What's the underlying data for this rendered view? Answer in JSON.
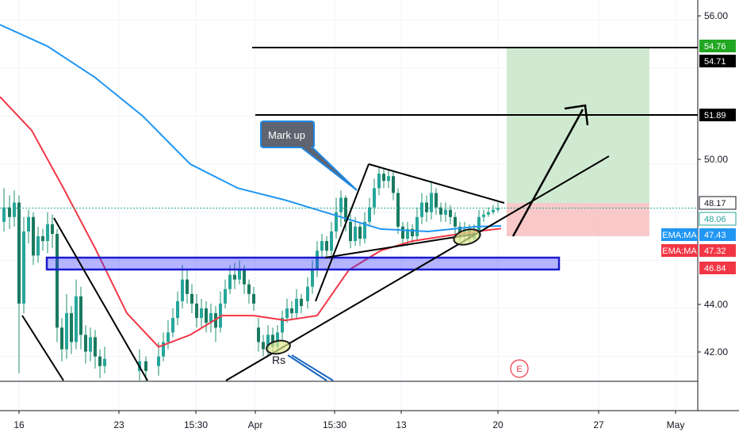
{
  "chart_data": {
    "type": "candlestick",
    "title": "",
    "xlabel": "",
    "ylabel": "",
    "ylim": [
      40.7,
      56.6
    ],
    "grid": true,
    "x_ticks": [
      "16",
      "23",
      "15:30",
      "Apr",
      "15:30",
      "13",
      "20",
      "27",
      "May"
    ],
    "y_ticks": [
      "56.00",
      "50.00",
      "44.00",
      "42.00"
    ],
    "price_badges": [
      {
        "value": "54.76",
        "color": "#22a722"
      },
      {
        "value": "54.71",
        "color": "#000000"
      },
      {
        "value": "51.89",
        "color": "#000000"
      },
      {
        "value": "48.17",
        "color": "#ffffff"
      },
      {
        "value": "48.06",
        "color": "#ffffff"
      },
      {
        "value": "47.43",
        "color": "#2196f3"
      },
      {
        "value": "47.32",
        "color": "#f23645"
      },
      {
        "value": "46.84",
        "color": "#f23645"
      }
    ],
    "series": [
      {
        "name": "EMA:MA",
        "color": "#2196f3",
        "values": [
          [
            0,
            55.8
          ],
          [
            60,
            54.9
          ],
          [
            120,
            53.6
          ],
          [
            180,
            52.0
          ],
          [
            240,
            50.0
          ],
          [
            300,
            49.0
          ],
          [
            360,
            48.5
          ],
          [
            420,
            47.9
          ],
          [
            480,
            47.3
          ],
          [
            540,
            47.2
          ],
          [
            600,
            47.4
          ],
          [
            632,
            47.43
          ]
        ]
      },
      {
        "name": "EMA:MA",
        "color": "#f23645",
        "values": [
          [
            0,
            52.8
          ],
          [
            40,
            51.4
          ],
          [
            80,
            49.0
          ],
          [
            120,
            46.5
          ],
          [
            160,
            43.8
          ],
          [
            200,
            42.4
          ],
          [
            240,
            42.9
          ],
          [
            280,
            43.7
          ],
          [
            320,
            43.7
          ],
          [
            360,
            43.5
          ],
          [
            400,
            43.7
          ],
          [
            440,
            45.6
          ],
          [
            480,
            46.4
          ],
          [
            520,
            46.8
          ],
          [
            560,
            47.0
          ],
          [
            600,
            47.2
          ],
          [
            632,
            47.32
          ]
        ]
      }
    ],
    "candles": [
      [
        5,
        47.6,
        48.2,
        49.0,
        47.2
      ],
      [
        12,
        48.2,
        47.8,
        48.7,
        47.3
      ],
      [
        18,
        47.8,
        48.4,
        48.9,
        47.4
      ],
      [
        24,
        48.4,
        44.2,
        48.7,
        41.3
      ],
      [
        30,
        44.2,
        47.2,
        47.8,
        43.8
      ],
      [
        36,
        47.2,
        47.8,
        48.1,
        46.7
      ],
      [
        42,
        47.8,
        46.2,
        48.0,
        45.8
      ],
      [
        48,
        46.2,
        47.0,
        47.4,
        45.9
      ],
      [
        54,
        47.0,
        46.8,
        47.3,
        46.4
      ],
      [
        60,
        46.8,
        47.5,
        48.0,
        46.3
      ],
      [
        66,
        47.5,
        47.1,
        47.9,
        46.5
      ],
      [
        72,
        47.1,
        43.2,
        47.3,
        42.6
      ],
      [
        78,
        43.2,
        42.3,
        43.6,
        41.8
      ],
      [
        84,
        42.3,
        43.8,
        44.6,
        41.9
      ],
      [
        90,
        43.8,
        42.6,
        44.1,
        42.1
      ],
      [
        96,
        42.6,
        44.5,
        45.2,
        42.3
      ],
      [
        102,
        44.5,
        42.9,
        44.9,
        42.3
      ],
      [
        108,
        42.9,
        42.2,
        43.3,
        41.7
      ],
      [
        114,
        42.2,
        42.8,
        43.2,
        41.8
      ],
      [
        120,
        42.8,
        42.0,
        43.1,
        41.5
      ],
      [
        126,
        42.0,
        41.6,
        42.3,
        41.1
      ],
      [
        132,
        41.6,
        41.9,
        42.4,
        41.3
      ],
      [
        176,
        41.4,
        41.8,
        42.3,
        41.0
      ],
      [
        184,
        41.8,
        41.4,
        42.0,
        41.0
      ],
      [
        200,
        41.6,
        42.0,
        42.6,
        41.2
      ],
      [
        206,
        42.0,
        42.6,
        43.0,
        41.8
      ],
      [
        212,
        42.6,
        43.0,
        43.5,
        42.3
      ],
      [
        218,
        43.0,
        43.6,
        44.0,
        42.8
      ],
      [
        224,
        43.6,
        44.3,
        44.7,
        43.3
      ],
      [
        230,
        44.3,
        45.2,
        45.8,
        44.0
      ],
      [
        236,
        45.2,
        44.6,
        45.6,
        44.2
      ],
      [
        242,
        44.6,
        44.2,
        45.0,
        43.8
      ],
      [
        248,
        44.2,
        43.6,
        44.6,
        43.2
      ],
      [
        254,
        43.6,
        44.0,
        44.4,
        43.2
      ],
      [
        260,
        44.0,
        43.4,
        44.3,
        43.0
      ],
      [
        266,
        43.4,
        43.8,
        44.2,
        43.0
      ],
      [
        272,
        43.8,
        43.2,
        44.1,
        42.6
      ],
      [
        278,
        43.2,
        44.2,
        44.7,
        43.0
      ],
      [
        284,
        44.2,
        44.8,
        45.2,
        44.0
      ],
      [
        290,
        44.8,
        45.4,
        45.8,
        44.6
      ],
      [
        296,
        45.4,
        45.2,
        45.9,
        44.8
      ],
      [
        302,
        45.2,
        45.6,
        46.0,
        45.0
      ],
      [
        308,
        45.6,
        45.0,
        45.8,
        44.6
      ],
      [
        314,
        45.0,
        44.6,
        45.2,
        44.2
      ],
      [
        320,
        44.6,
        44.2,
        44.9,
        43.9
      ],
      [
        326,
        43.2,
        42.6,
        43.6,
        42.2
      ],
      [
        332,
        42.6,
        42.3,
        42.9,
        42.0
      ],
      [
        338,
        42.3,
        42.9,
        43.3,
        42.0
      ],
      [
        344,
        42.9,
        42.4,
        43.2,
        42.1
      ],
      [
        350,
        42.4,
        43.0,
        43.3,
        42.1
      ],
      [
        356,
        43.0,
        43.6,
        43.9,
        42.7
      ],
      [
        362,
        43.6,
        44.0,
        44.4,
        43.4
      ],
      [
        368,
        44.0,
        43.8,
        44.3,
        43.5
      ],
      [
        374,
        43.8,
        44.4,
        44.8,
        43.6
      ],
      [
        380,
        44.4,
        44.1,
        44.6,
        43.8
      ],
      [
        388,
        44.3,
        44.9,
        45.3,
        44.0
      ],
      [
        394,
        44.9,
        45.6,
        46.0,
        44.6
      ],
      [
        400,
        45.6,
        46.4,
        46.8,
        45.3
      ],
      [
        406,
        46.4,
        46.8,
        47.1,
        46.1
      ],
      [
        412,
        46.8,
        46.4,
        47.0,
        46.1
      ],
      [
        418,
        46.4,
        47.2,
        47.6,
        46.2
      ],
      [
        424,
        47.2,
        48.0,
        48.6,
        46.9
      ],
      [
        430,
        48.0,
        48.6,
        48.9,
        47.4
      ],
      [
        436,
        48.6,
        47.6,
        48.7,
        47.2
      ],
      [
        442,
        47.6,
        46.8,
        47.9,
        46.5
      ],
      [
        448,
        46.8,
        47.4,
        47.8,
        46.6
      ],
      [
        454,
        47.4,
        46.9,
        47.6,
        46.6
      ],
      [
        460,
        46.9,
        47.6,
        48.0,
        46.7
      ],
      [
        466,
        47.6,
        48.2,
        48.6,
        47.4
      ],
      [
        472,
        48.2,
        49.0,
        49.4,
        47.9
      ],
      [
        478,
        49.0,
        49.6,
        49.9,
        48.7
      ],
      [
        484,
        49.6,
        49.3,
        49.8,
        49.0
      ],
      [
        490,
        49.3,
        49.5,
        49.8,
        49.0
      ],
      [
        496,
        49.5,
        48.8,
        49.7,
        48.5
      ],
      [
        502,
        48.8,
        47.4,
        49.0,
        47.1
      ],
      [
        508,
        47.4,
        46.9,
        47.6,
        46.6
      ],
      [
        514,
        46.9,
        47.3,
        47.6,
        46.6
      ],
      [
        520,
        47.3,
        47.0,
        47.5,
        46.7
      ],
      [
        526,
        47.0,
        47.8,
        48.2,
        46.8
      ],
      [
        532,
        47.8,
        48.4,
        48.8,
        47.5
      ],
      [
        538,
        48.4,
        48.0,
        48.7,
        47.6
      ],
      [
        544,
        48.0,
        48.8,
        49.3,
        47.7
      ],
      [
        550,
        48.8,
        48.2,
        49.0,
        47.9
      ],
      [
        556,
        48.2,
        47.9,
        48.4,
        47.6
      ],
      [
        562,
        47.9,
        48.1,
        48.4,
        47.6
      ],
      [
        568,
        48.1,
        47.8,
        48.3,
        47.5
      ],
      [
        574,
        47.8,
        47.4,
        48.0,
        46.9
      ],
      [
        580,
        47.4,
        47.0,
        47.6,
        46.8
      ],
      [
        586,
        47.0,
        47.3,
        47.6,
        46.8
      ],
      [
        592,
        47.3,
        46.9,
        47.5,
        46.7
      ],
      [
        598,
        46.9,
        47.2,
        47.5,
        46.8
      ],
      [
        604,
        47.2,
        47.8,
        48.1,
        47.0
      ],
      [
        610,
        47.8,
        47.9,
        48.1,
        47.6
      ],
      [
        616,
        47.9,
        48.0,
        48.2,
        47.8
      ],
      [
        622,
        48.0,
        48.1,
        48.3,
        47.9
      ],
      [
        628,
        48.1,
        48.17,
        48.4,
        48.0
      ]
    ],
    "annotations": [
      {
        "kind": "callout",
        "text": "Mark up"
      },
      {
        "kind": "label",
        "text": "Rs"
      },
      {
        "kind": "earnings-marker",
        "text": "E"
      }
    ]
  }
}
